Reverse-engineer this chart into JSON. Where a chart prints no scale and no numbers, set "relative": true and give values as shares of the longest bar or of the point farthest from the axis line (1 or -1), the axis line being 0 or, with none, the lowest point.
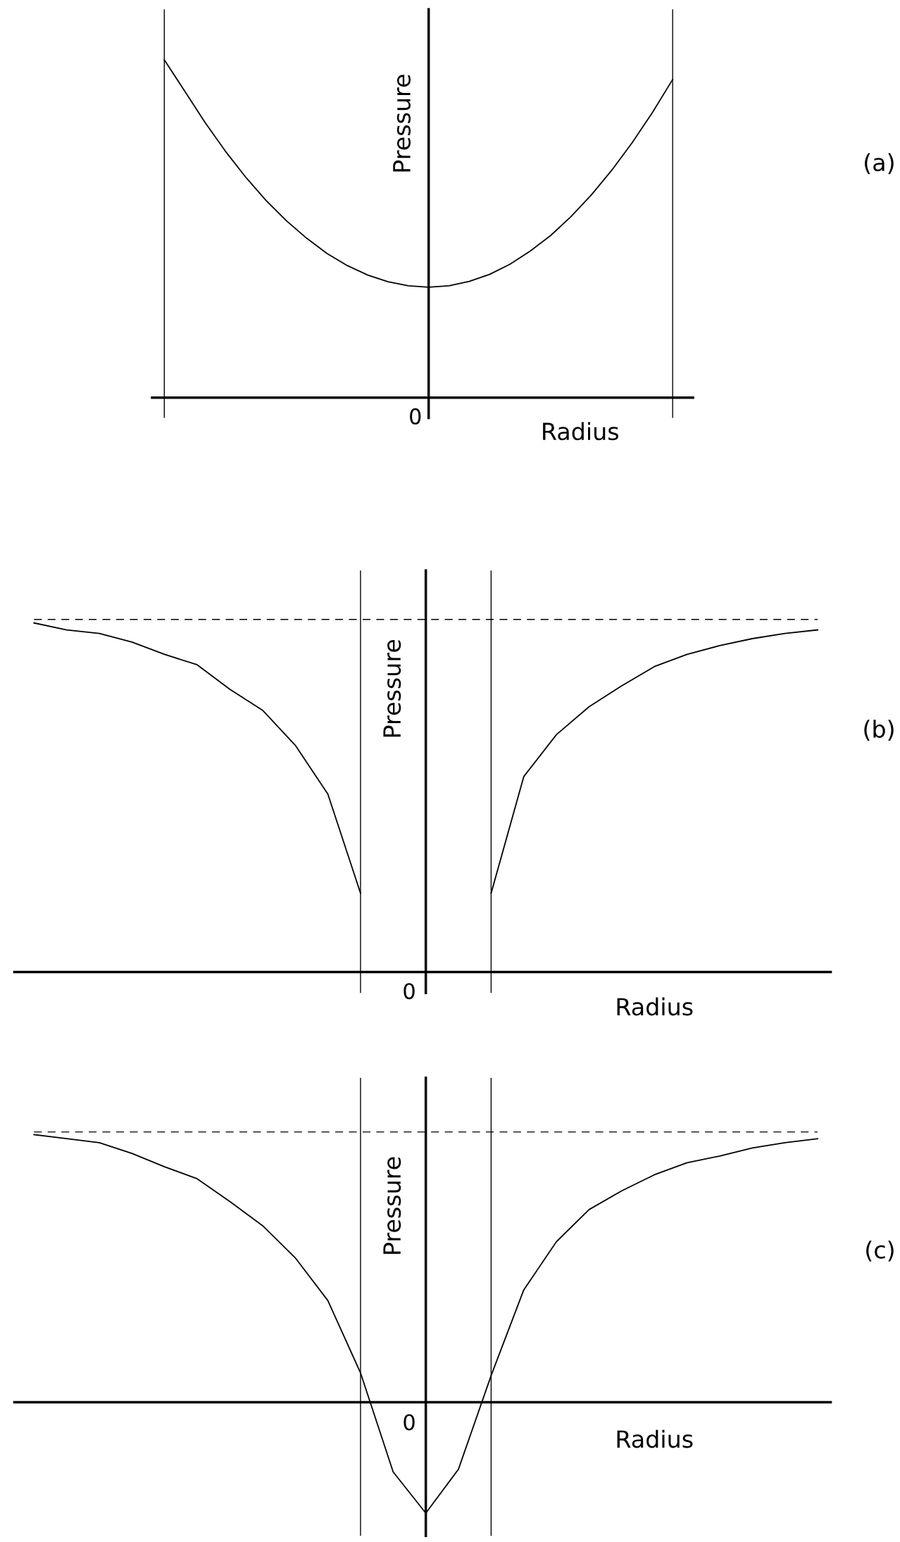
{
  "chart_data": [
    {
      "type": "line",
      "relative": true,
      "xlabel": "Radius",
      "ylabel": "Pressure",
      "annotations": [
        "(a)",
        "0"
      ],
      "marker": "none",
      "line_style": "solid",
      "categories": [
        null,
        null,
        null,
        null,
        null,
        null,
        null,
        null,
        null,
        null,
        null,
        null,
        null,
        null,
        null,
        null,
        null,
        null,
        null,
        null,
        null,
        null,
        null,
        null,
        null,
        null,
        null
      ],
      "series": [
        {
          "color": "#000000",
          "values": [
            1.0,
            0.908,
            0.815,
            0.73,
            0.653,
            0.584,
            0.524,
            0.472,
            0.427,
            0.391,
            0.363,
            0.343,
            0.331,
            0.327,
            0.331,
            0.344,
            0.365,
            0.395,
            0.434,
            0.48,
            0.536,
            0.6,
            0.673,
            0.754,
            0.844,
            0.942,
            null
          ]
        }
      ]
    },
    {
      "type": "line",
      "relative": true,
      "xlabel": "Radius",
      "ylabel": "Pressure",
      "annotations": [
        "(b)",
        "0"
      ],
      "marker": "none",
      "line_style": "solid",
      "categories": [
        null,
        null,
        null,
        null,
        null,
        null,
        null,
        null,
        null,
        null,
        null,
        null,
        null,
        null,
        null,
        null,
        null,
        null,
        null,
        null,
        null,
        null,
        null,
        null,
        null
      ],
      "series": [
        {
          "color": "#000000",
          "values": [
            1.0,
            0.98,
            0.97,
            0.945,
            0.91,
            0.88,
            0.81,
            0.75,
            0.65,
            0.51,
            0.226,
            null,
            null,
            null,
            null,
            null,
            null,
            null,
            null,
            null,
            null,
            null,
            null,
            null,
            null
          ]
        },
        {
          "color": "#000000",
          "values": [
            null,
            null,
            null,
            null,
            null,
            null,
            null,
            null,
            null,
            null,
            null,
            null,
            null,
            null,
            0.226,
            0.56,
            0.68,
            0.76,
            0.82,
            0.875,
            0.91,
            0.935,
            0.955,
            0.97,
            0.98
          ]
        }
      ]
    },
    {
      "type": "line",
      "relative": true,
      "xlabel": "Radius",
      "ylabel": "Pressure",
      "annotations": [
        "(c)",
        "0"
      ],
      "marker": "none",
      "line_style": "solid",
      "categories": [
        null,
        null,
        null,
        null,
        null,
        null,
        null,
        null,
        null,
        null,
        null,
        null,
        null,
        null,
        null,
        null,
        null,
        null,
        null,
        null,
        null,
        null,
        null,
        null,
        null
      ],
      "series": [
        {
          "color": "#000000",
          "values": [
            1.0,
            0.985,
            0.97,
            0.93,
            0.88,
            0.835,
            0.75,
            0.66,
            0.54,
            0.38,
            0.11,
            -0.26,
            -0.414,
            -0.25,
            0.1,
            0.42,
            0.6,
            0.72,
            0.79,
            0.85,
            0.895,
            0.92,
            0.95,
            0.97,
            0.985
          ]
        }
      ]
    }
  ]
}
